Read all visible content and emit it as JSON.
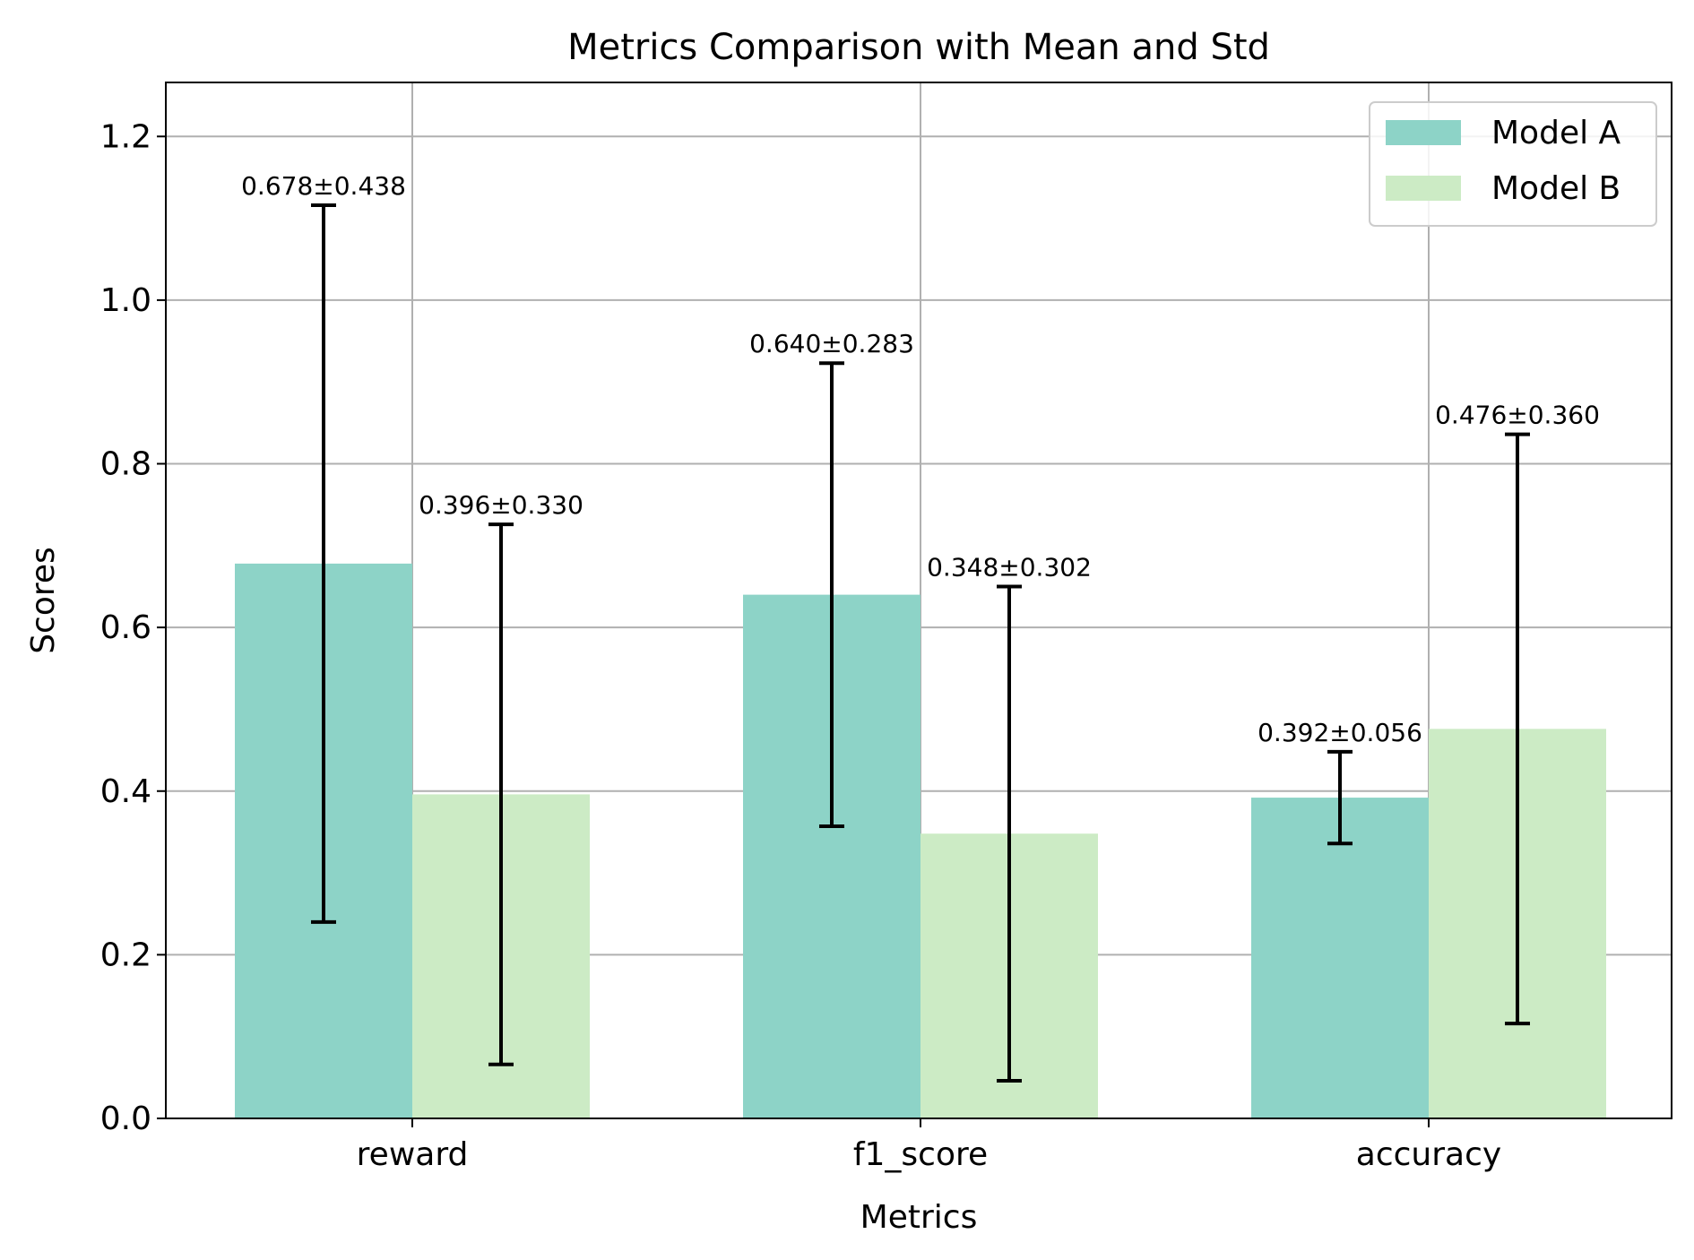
{
  "chart_data": {
    "type": "bar",
    "title": "Metrics Comparison with Mean and Std",
    "xlabel": "Metrics",
    "ylabel": "Scores",
    "categories": [
      "reward",
      "f1_score",
      "accuracy"
    ],
    "series": [
      {
        "name": "Model A",
        "color": "#8dd3c7",
        "values": [
          0.678,
          0.64,
          0.392
        ],
        "errors": [
          0.438,
          0.283,
          0.056
        ],
        "labels": [
          "0.678±0.438",
          "0.640±0.283",
          "0.392±0.056"
        ]
      },
      {
        "name": "Model B",
        "color": "#ccebc5",
        "values": [
          0.396,
          0.348,
          0.476
        ],
        "errors": [
          0.33,
          0.302,
          0.36
        ],
        "labels": [
          "0.396±0.330",
          "0.348±0.302",
          "0.476±0.360"
        ]
      }
    ],
    "ylim": [
      0,
      1.266
    ],
    "yticks": [
      0.0,
      0.2,
      0.4,
      0.6,
      0.8,
      1.0,
      1.2
    ],
    "ytick_labels": [
      "0.0",
      "0.2",
      "0.4",
      "0.6",
      "0.8",
      "1.0",
      "1.2"
    ],
    "grid": true,
    "legend_position": "top-right",
    "grid_color": "#b0b0b0",
    "errorbar_color": "#000000"
  }
}
